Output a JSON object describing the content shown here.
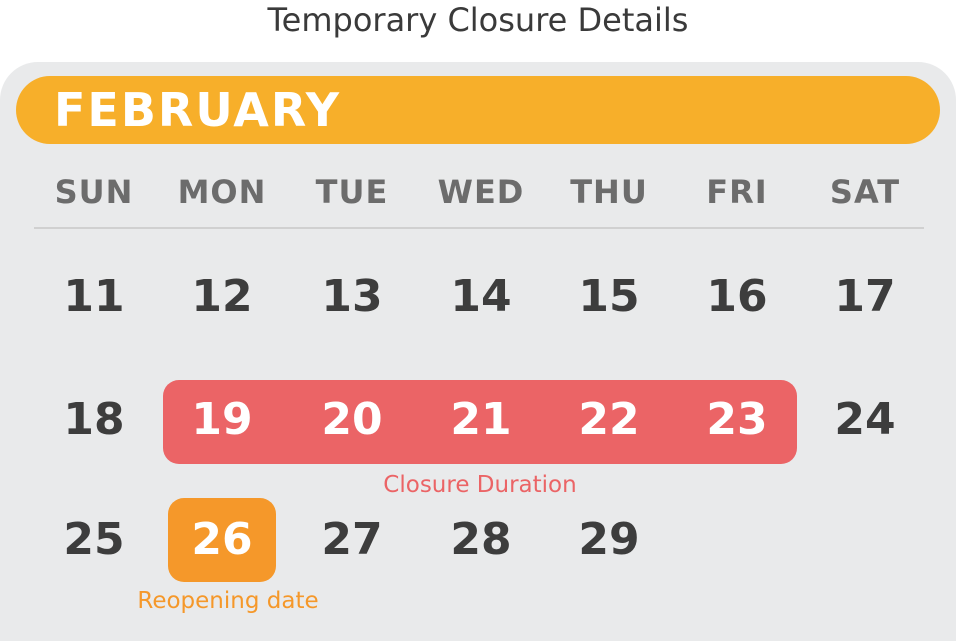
{
  "title": "Temporary Closure Details",
  "month": "FEBRUARY",
  "weekdays": [
    "SUN",
    "MON",
    "TUE",
    "WED",
    "THU",
    "FRI",
    "SAT"
  ],
  "weeks": [
    [
      "11",
      "12",
      "13",
      "14",
      "15",
      "16",
      "17"
    ],
    [
      "18",
      "19",
      "20",
      "21",
      "22",
      "23",
      "24"
    ],
    [
      "25",
      "26",
      "27",
      "28",
      "29"
    ]
  ],
  "closure_days": [
    "19",
    "20",
    "21",
    "22",
    "23"
  ],
  "reopen_day": "26",
  "labels": {
    "closure": "Closure Duration",
    "reopening": "Reopening date"
  },
  "colors": {
    "month_bar": "#f7af2a",
    "closure": "#eb6466",
    "reopening": "#f5982a",
    "panel": "#e9eaeb",
    "day_text": "#3d3d3d",
    "weekday_text": "#6c6c6c"
  }
}
